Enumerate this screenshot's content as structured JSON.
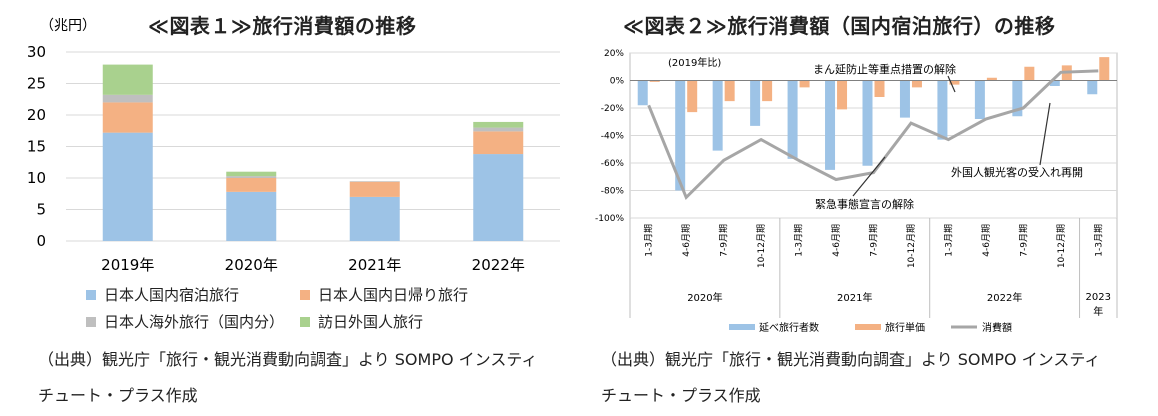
{
  "chart_data": [
    {
      "type": "bar",
      "stacked": true,
      "title": "≪図表１≫旅行消費額の推移",
      "ylabel": "（兆円）",
      "ylim": [
        0,
        30
      ],
      "yticks": [
        "0",
        "5",
        "10",
        "15",
        "20",
        "25",
        "30"
      ],
      "categories": [
        "2019年",
        "2020年",
        "2021年",
        "2022年"
      ],
      "series": [
        {
          "name": "日本人国内宿泊旅行",
          "color": "#9DC3E6",
          "values": [
            17.2,
            7.8,
            7.0,
            13.8
          ]
        },
        {
          "name": "日本人国内日帰り旅行",
          "color": "#F4B183",
          "values": [
            4.8,
            2.2,
            2.4,
            3.6
          ]
        },
        {
          "name": "日本人海外旅行（国内分）",
          "color": "#BFBFBF",
          "values": [
            1.2,
            0.3,
            0.1,
            0.6
          ]
        },
        {
          "name": "訪日外国人旅行",
          "color": "#A9D18E",
          "values": [
            4.8,
            0.7,
            0.0,
            0.9
          ]
        }
      ],
      "grid": true,
      "legend": "bottom"
    },
    {
      "type": "bar",
      "title": "≪図表２≫旅行消費額（国内宿泊旅行）の推移",
      "annotation_unit": "(2019年比)",
      "ylim": [
        -100,
        20
      ],
      "yticks": [
        "-100%",
        "-80%",
        "-60%",
        "-40%",
        "-20%",
        "0%",
        "20%"
      ],
      "categories": [
        "1-3月期",
        "4-6月期",
        "7-9月期",
        "10-12月期",
        "1-3月期",
        "4-6月期",
        "7-9月期",
        "10-12月期",
        "1-3月期",
        "4-6月期",
        "7-9月期",
        "10-12月期",
        "1-3月期"
      ],
      "year_groups": [
        {
          "label": "2020年",
          "count": 4
        },
        {
          "label": "2021年",
          "count": 4
        },
        {
          "label": "2022年",
          "count": 4
        },
        {
          "label": "2023年",
          "count": 1
        }
      ],
      "series": [
        {
          "name": "延べ旅行者数",
          "type": "bar",
          "color": "#9DC3E6",
          "values": [
            -18,
            -80,
            -51,
            -33,
            -57,
            -65,
            -62,
            -27,
            -43,
            -28,
            -26,
            -4,
            -10
          ]
        },
        {
          "name": "旅行単価",
          "type": "bar",
          "color": "#F4B183",
          "values": [
            -1,
            -23,
            -15,
            -15,
            -5,
            -21,
            -12,
            -5,
            -3,
            2,
            10,
            11,
            17
          ]
        },
        {
          "name": "消費額",
          "type": "line",
          "color": "#A6A6A6",
          "values": [
            -18,
            -85,
            -58,
            -43,
            -58,
            -72,
            -67,
            -31,
            -43,
            -28,
            -20,
            6,
            7
          ]
        }
      ],
      "annotations": [
        "まん延防止等重点措置の解除",
        "外国人観光客の受入れ再開",
        "緊急事態宣言の解除"
      ],
      "legend": "bottom"
    }
  ],
  "sources": {
    "p1_line1": "（出典）観光庁「旅行・観光消費動向調査」より SOMPO インスティ",
    "p1_line2": "チュート・プラス作成",
    "p2_line1": "（出典）観光庁「旅行・観光消費動向調査」より SOMPO インスティ",
    "p2_line2": "チュート・プラス作成"
  }
}
